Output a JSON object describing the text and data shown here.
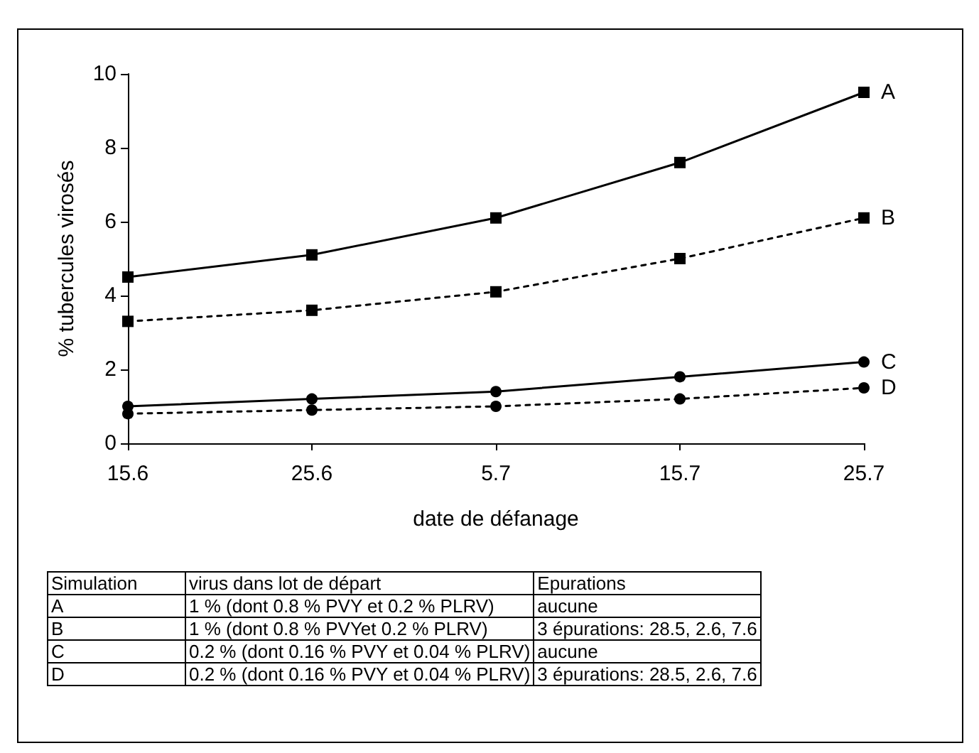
{
  "chart_data": {
    "type": "line",
    "xlabel": "date de défanage",
    "ylabel": "% tubercules virosés",
    "categories": [
      "15.6",
      "25.6",
      "5.7",
      "15.7",
      "25.7"
    ],
    "series": [
      {
        "name": "A",
        "color": "#000000",
        "values": [
          4.5,
          5.1,
          6.1,
          7.6,
          9.5
        ],
        "marker": "square",
        "line_style": "solid"
      },
      {
        "name": "B",
        "color": "#000000",
        "values": [
          3.3,
          3.6,
          4.1,
          5.0,
          6.1
        ],
        "marker": "square",
        "line_style": "dotted"
      },
      {
        "name": "C",
        "color": "#000000",
        "values": [
          1.0,
          1.2,
          1.4,
          1.8,
          2.2
        ],
        "marker": "circle",
        "line_style": "solid"
      },
      {
        "name": "D",
        "color": "#000000",
        "values": [
          0.8,
          0.9,
          1.0,
          1.2,
          1.5
        ],
        "marker": "circle",
        "line_style": "dotted"
      }
    ],
    "ylim": [
      0,
      10
    ],
    "yticks": [
      0,
      2,
      4,
      6,
      8,
      10
    ],
    "grid": false,
    "legend": false,
    "annotations": [
      "Simulation",
      "virus dans lot de départ",
      "Epurations",
      "A",
      "1 % (dont 0.8 % PVY et 0.2 % PLRV)",
      "aucune",
      "B",
      "1 % (dont 0.8 % PVYet 0.2 % PLRV)",
      "3 épurations: 28.5, 2.6, 7.6",
      "C",
      "0.2 % (dont 0.16 % PVY et 0.04 % PLRV)",
      "aucune",
      "D",
      "0.2 % (dont 0.16 % PVY et 0.04 % PLRV)",
      "3 épurations: 28.5, 2.6, 7.6"
    ]
  }
}
